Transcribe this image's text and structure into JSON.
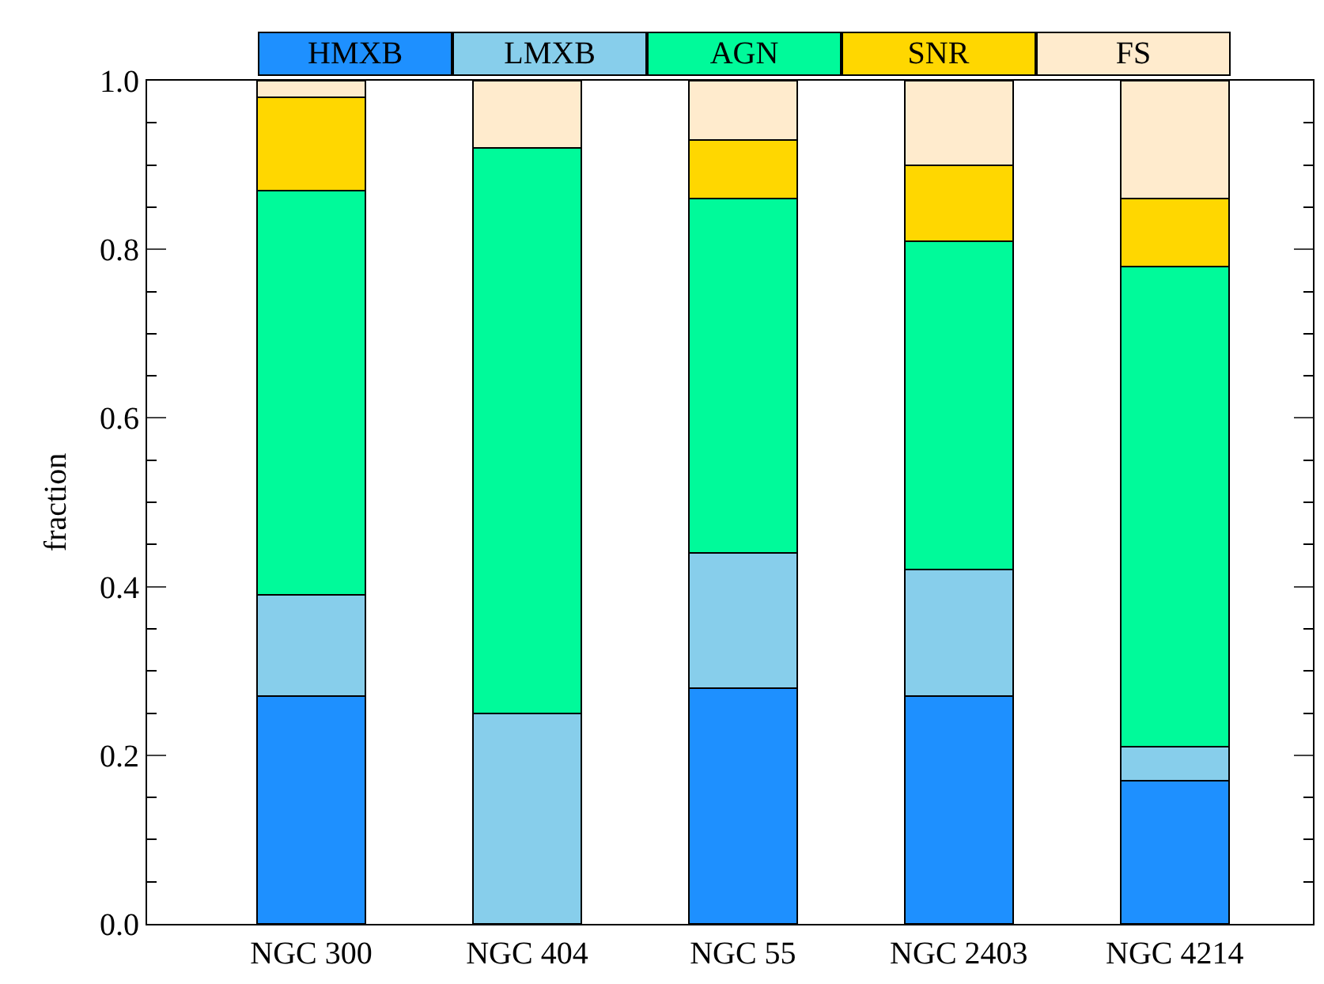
{
  "chart_data": {
    "type": "bar",
    "stacked": true,
    "ylabel": "fraction",
    "categories": [
      "NGC 300",
      "NGC 404",
      "NGC 55",
      "NGC 2403",
      "NGC 4214"
    ],
    "series": [
      {
        "name": "HMXB",
        "color": "#1e90ff",
        "values": [
          0.27,
          0,
          0.28,
          0.27,
          0.17
        ]
      },
      {
        "name": "LMXB",
        "color": "#87ceeb",
        "values": [
          0.12,
          0.25,
          0.16,
          0.15,
          0.04
        ]
      },
      {
        "name": "AGN",
        "color": "#00fa9a",
        "values": [
          0.48,
          0.67,
          0.42,
          0.39,
          0.57
        ]
      },
      {
        "name": "SNR",
        "color": "#ffd700",
        "values": [
          0.11,
          0,
          0.07,
          0.09,
          0.08
        ]
      },
      {
        "name": "FS",
        "color": "#ffebcd",
        "values": [
          0.02,
          0.08,
          0.07,
          0.1,
          0.14
        ]
      }
    ],
    "ylim": [
      0,
      1.0
    ],
    "yticks": [
      {
        "value": 0,
        "label": "0.0"
      },
      0.2,
      0.4,
      0.6,
      0.8,
      {
        "value": 1,
        "label": "1.0"
      }
    ],
    "legend": "top"
  }
}
